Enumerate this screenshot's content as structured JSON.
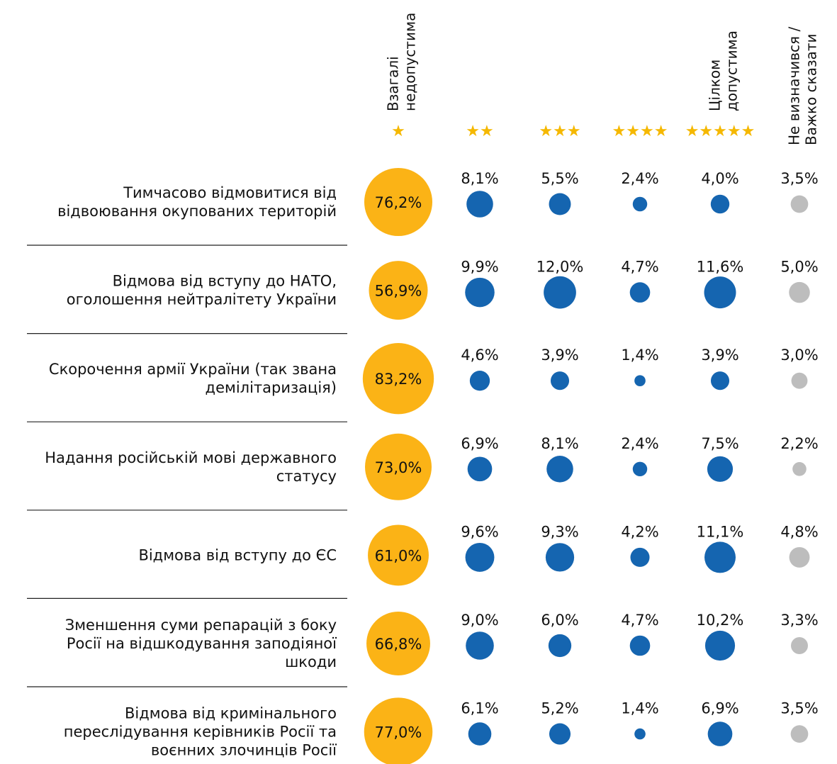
{
  "chart_data": {
    "type": "bubble-matrix",
    "categories": [
      [
        "Тимчасово відмовитися від",
        "відвоювання окупованих територій"
      ],
      [
        "Відмова від вступу до НАТО,",
        "оголошення нейтралітету України"
      ],
      [
        "Скорочення армії України (так звана",
        "демілітаризація)"
      ],
      [
        "Надання російській мові державного",
        "статусу"
      ],
      [
        "Відмова від вступу до ЄС"
      ],
      [
        "Зменшення суми репарацій з боку",
        "Росії на відшкодування заподіяної",
        "шкоди"
      ],
      [
        "Відмова від кримінального",
        "переслідування керівників Росії та",
        "воєнних злочинців Росії"
      ]
    ],
    "series": [
      {
        "name": [
          "Взагалі",
          "недопустима"
        ],
        "stars": "★",
        "color": "#fbb316",
        "values": [
          76.2,
          56.9,
          83.2,
          73.0,
          61.0,
          66.8,
          77.0
        ],
        "value_labels": [
          "76,2%",
          "56,9%",
          "83,2%",
          "73,0%",
          "61,0%",
          "66,8%",
          "77,0%"
        ]
      },
      {
        "stars": "★★",
        "color": "#1565b0",
        "values": [
          8.1,
          9.9,
          4.6,
          6.9,
          9.6,
          9.0,
          6.1
        ],
        "value_labels": [
          "8,1%",
          "9,9%",
          "4,6%",
          "6,9%",
          "9,6%",
          "9,0%",
          "6,1%"
        ]
      },
      {
        "stars": "★★★",
        "color": "#1565b0",
        "values": [
          5.5,
          12.0,
          3.9,
          8.1,
          9.3,
          6.0,
          5.2
        ],
        "value_labels": [
          "5,5%",
          "12,0%",
          "3,9%",
          "8,1%",
          "9,3%",
          "6,0%",
          "5,2%"
        ]
      },
      {
        "stars": "★★★★",
        "color": "#1565b0",
        "values": [
          2.4,
          4.7,
          1.4,
          2.4,
          4.2,
          4.7,
          1.4
        ],
        "value_labels": [
          "2,4%",
          "4,7%",
          "1,4%",
          "2,4%",
          "4,2%",
          "4,7%",
          "1,4%"
        ]
      },
      {
        "name": [
          "Цілком",
          "допустима"
        ],
        "stars": "★★★★★",
        "color": "#1565b0",
        "values": [
          4.0,
          11.6,
          3.9,
          7.5,
          11.1,
          10.2,
          6.9
        ],
        "value_labels": [
          "4,0%",
          "11,6%",
          "3,9%",
          "7,5%",
          "11,1%",
          "10,2%",
          "6,9%"
        ]
      },
      {
        "name": [
          "Не визначився /",
          "Важко сказати"
        ],
        "color": "#bdbdbd",
        "values": [
          3.5,
          5.0,
          3.0,
          2.2,
          4.8,
          3.3,
          3.5
        ],
        "value_labels": [
          "3,5%",
          "5,0%",
          "3,0%",
          "2,2%",
          "4,8%",
          "3,3%",
          "3,5%"
        ]
      }
    ]
  }
}
